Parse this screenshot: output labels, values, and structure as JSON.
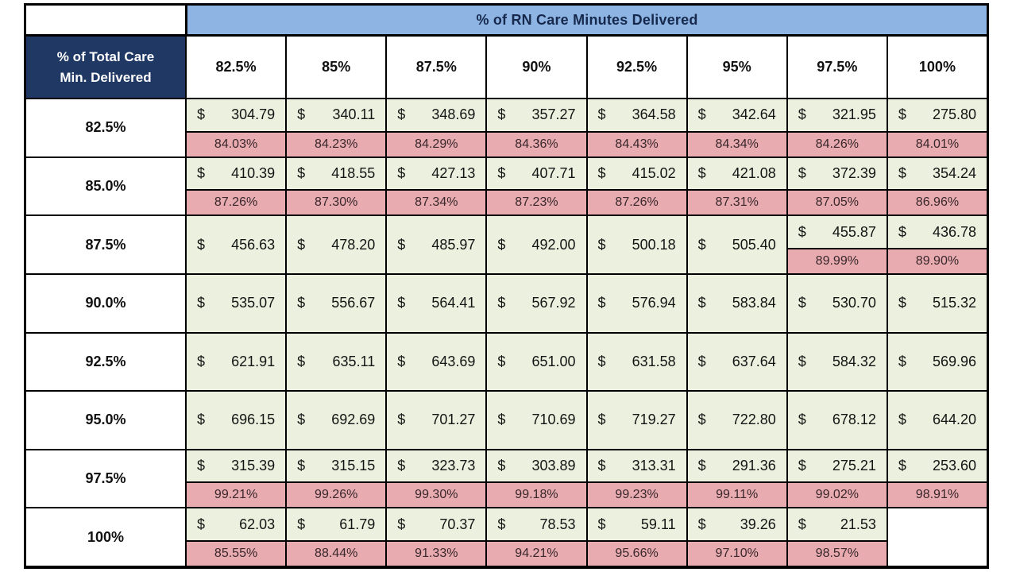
{
  "header": {
    "corner_line1": "% of Total Care",
    "corner_line2": "Min. Delivered"
  },
  "colors": {
    "header_blue": "#8EB4E3",
    "corner_navy": "#1F3864",
    "dollar_cell_green": "#EBF1DE",
    "percent_cell_pink": "#E7ABB0",
    "border_black": "#000000"
  },
  "chart_data": {
    "type": "table",
    "title": "% of RN Care Minutes Delivered",
    "col_axis_label": "% of RN Care Minutes Delivered",
    "row_axis_label": "% of Total Care Min. Delivered",
    "columns": [
      "82.5%",
      "85%",
      "87.5%",
      "90%",
      "92.5%",
      "95%",
      "97.5%",
      "100%"
    ],
    "row_labels": [
      "82.5%",
      "85.0%",
      "87.5%",
      "90.0%",
      "92.5%",
      "95.0%",
      "97.5%",
      "100%"
    ],
    "dollar_values": [
      [
        304.79,
        340.11,
        348.69,
        357.27,
        364.58,
        342.64,
        321.95,
        275.8
      ],
      [
        410.39,
        418.55,
        427.13,
        407.71,
        415.02,
        421.08,
        372.39,
        354.24
      ],
      [
        456.63,
        478.2,
        485.97,
        492.0,
        500.18,
        505.4,
        455.87,
        436.78
      ],
      [
        535.07,
        556.67,
        564.41,
        567.92,
        576.94,
        583.84,
        530.7,
        515.32
      ],
      [
        621.91,
        635.11,
        643.69,
        651.0,
        631.58,
        637.64,
        584.32,
        569.96
      ],
      [
        696.15,
        692.69,
        701.27,
        710.69,
        719.27,
        722.8,
        678.12,
        644.2
      ],
      [
        315.39,
        315.15,
        323.73,
        303.89,
        313.31,
        291.36,
        275.21,
        253.6
      ],
      [
        62.03,
        61.79,
        70.37,
        78.53,
        59.11,
        39.26,
        21.53,
        null
      ]
    ],
    "pct_values": [
      [
        84.03,
        84.23,
        84.29,
        84.36,
        84.43,
        84.34,
        84.26,
        84.01
      ],
      [
        87.26,
        87.3,
        87.34,
        87.23,
        87.26,
        87.31,
        87.05,
        86.96
      ],
      [
        null,
        null,
        null,
        null,
        null,
        null,
        89.99,
        89.9
      ],
      [
        null,
        null,
        null,
        null,
        null,
        null,
        null,
        null
      ],
      [
        null,
        null,
        null,
        null,
        null,
        null,
        null,
        null
      ],
      [
        null,
        null,
        null,
        null,
        null,
        null,
        null,
        null
      ],
      [
        99.21,
        99.26,
        99.3,
        99.18,
        99.23,
        99.11,
        99.02,
        98.91
      ],
      [
        85.55,
        88.44,
        91.33,
        94.21,
        95.66,
        97.1,
        98.57,
        null
      ]
    ]
  }
}
